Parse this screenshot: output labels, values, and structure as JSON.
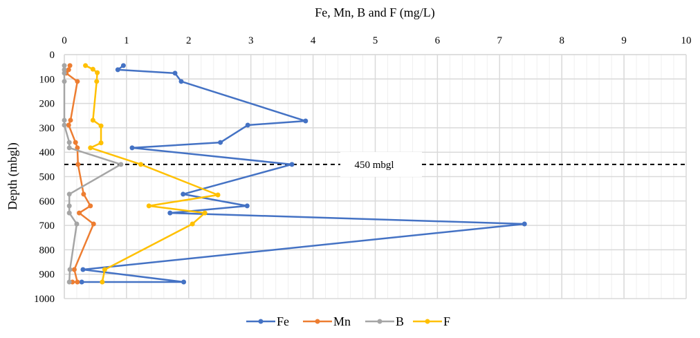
{
  "chart_data": {
    "type": "line",
    "title": "",
    "xlabel": "Fe, Mn, B and F (mg/L)",
    "ylabel": "Depth (mbgl)",
    "xlim": [
      0,
      10
    ],
    "ylim": [
      0,
      1000
    ],
    "y_inverted": true,
    "x_axis_position": "top",
    "x_ticks": [
      0,
      1,
      2,
      3,
      4,
      5,
      6,
      7,
      8,
      9,
      10
    ],
    "y_ticks": [
      0,
      100,
      200,
      300,
      400,
      500,
      600,
      700,
      800,
      900,
      1000
    ],
    "x_minor_step": 0.2,
    "grid": true,
    "legend_position": "bottom",
    "reference_line": {
      "depth": 450,
      "label": "450 mbgl",
      "style": "dashed",
      "color": "#000000"
    },
    "series": [
      {
        "name": "Fe",
        "color": "#4472C4",
        "points": [
          [
            0.95,
            45
          ],
          [
            0.86,
            62
          ],
          [
            1.78,
            76
          ],
          [
            1.88,
            110
          ],
          [
            3.88,
            272
          ],
          [
            2.95,
            289
          ],
          [
            2.51,
            360
          ],
          [
            1.09,
            382
          ],
          [
            3.66,
            450
          ],
          [
            1.91,
            572
          ],
          [
            2.94,
            620
          ],
          [
            1.7,
            649
          ],
          [
            7.4,
            694
          ],
          [
            0.3,
            881
          ],
          [
            1.92,
            932
          ],
          [
            0.28,
            932
          ]
        ]
      },
      {
        "name": "Mn",
        "color": "#ED7D31",
        "points": [
          [
            0.09,
            45
          ],
          [
            0.07,
            62
          ],
          [
            0.03,
            76
          ],
          [
            0.21,
            110
          ],
          [
            0.1,
            269
          ],
          [
            0.07,
            289
          ],
          [
            0.18,
            360
          ],
          [
            0.21,
            382
          ],
          [
            0.22,
            450
          ],
          [
            0.31,
            572
          ],
          [
            0.42,
            620
          ],
          [
            0.24,
            649
          ],
          [
            0.47,
            694
          ],
          [
            0.16,
            881
          ],
          [
            0.21,
            932
          ],
          [
            0.13,
            932
          ]
        ]
      },
      {
        "name": "B",
        "color": "#A5A5A5",
        "points": [
          [
            0.0,
            45
          ],
          [
            0.0,
            62
          ],
          [
            0.0,
            76
          ],
          [
            0.0,
            110
          ],
          [
            0.0,
            269
          ],
          [
            0.0,
            289
          ],
          [
            0.08,
            360
          ],
          [
            0.08,
            382
          ],
          [
            0.91,
            450
          ],
          [
            0.08,
            572
          ],
          [
            0.08,
            620
          ],
          [
            0.08,
            649
          ],
          [
            0.2,
            694
          ],
          [
            0.09,
            881
          ],
          [
            0.08,
            932
          ]
        ]
      },
      {
        "name": "F",
        "color": "#FFC000",
        "points": [
          [
            0.34,
            45
          ],
          [
            0.46,
            60
          ],
          [
            0.53,
            74
          ],
          [
            0.52,
            110
          ],
          [
            0.46,
            269
          ],
          [
            0.59,
            292
          ],
          [
            0.59,
            362
          ],
          [
            0.42,
            382
          ],
          [
            1.23,
            450
          ],
          [
            2.47,
            575
          ],
          [
            1.36,
            620
          ],
          [
            2.26,
            649
          ],
          [
            2.06,
            694
          ],
          [
            0.65,
            881
          ],
          [
            0.61,
            932
          ]
        ]
      }
    ]
  }
}
